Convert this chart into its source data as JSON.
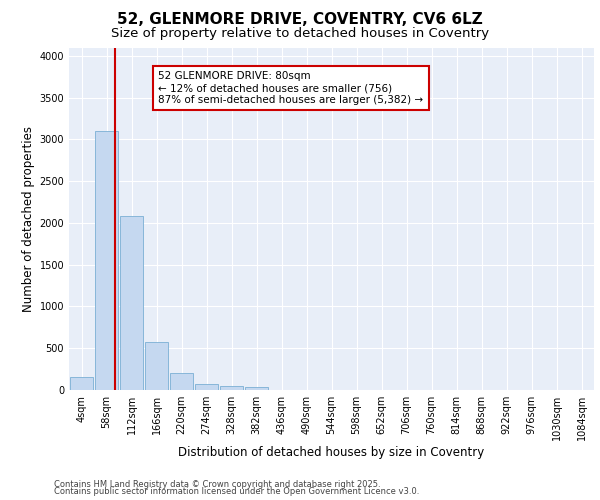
{
  "title1": "52, GLENMORE DRIVE, COVENTRY, CV6 6LZ",
  "title2": "Size of property relative to detached houses in Coventry",
  "xlabel": "Distribution of detached houses by size in Coventry",
  "ylabel": "Number of detached properties",
  "categories": [
    "4sqm",
    "58sqm",
    "112sqm",
    "166sqm",
    "220sqm",
    "274sqm",
    "328sqm",
    "382sqm",
    "436sqm",
    "490sqm",
    "544sqm",
    "598sqm",
    "652sqm",
    "706sqm",
    "760sqm",
    "814sqm",
    "868sqm",
    "922sqm",
    "976sqm",
    "1030sqm",
    "1084sqm"
  ],
  "values": [
    150,
    3100,
    2080,
    580,
    205,
    75,
    45,
    35,
    0,
    0,
    0,
    0,
    0,
    0,
    0,
    0,
    0,
    0,
    0,
    0,
    0
  ],
  "bar_color": "#c5d8f0",
  "bar_edge_color": "#7bafd4",
  "vline_color": "#cc0000",
  "vline_pos": 1.35,
  "annotation_text": "52 GLENMORE DRIVE: 80sqm\n← 12% of detached houses are smaller (756)\n87% of semi-detached houses are larger (5,382) →",
  "annotation_box_color": "#cc0000",
  "ylim_max": 4100,
  "yticks": [
    0,
    500,
    1000,
    1500,
    2000,
    2500,
    3000,
    3500,
    4000
  ],
  "footer1": "Contains HM Land Registry data © Crown copyright and database right 2025.",
  "footer2": "Contains public sector information licensed under the Open Government Licence v3.0.",
  "plot_bg_color": "#e8eef8",
  "fig_bg_color": "#ffffff",
  "grid_color": "#ffffff",
  "title1_fontsize": 11,
  "title2_fontsize": 9.5,
  "axis_label_fontsize": 8.5,
  "tick_fontsize": 7,
  "footer_fontsize": 6,
  "annot_fontsize": 7.5
}
